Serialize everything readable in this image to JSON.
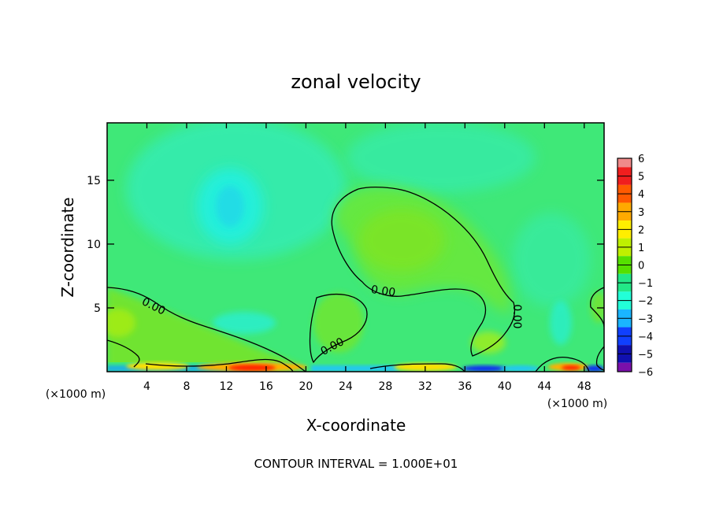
{
  "chart_data": {
    "type": "heatmap",
    "title": "zonal velocity",
    "xlabel": "X-coordinate",
    "ylabel": "Z-coordinate",
    "x_unit_left": "(×1000 m)",
    "x_unit_right": "(×1000 m)",
    "xlim": [
      0,
      50
    ],
    "ylim": [
      0,
      19.5
    ],
    "xticks": [
      4,
      8,
      12,
      16,
      20,
      24,
      28,
      32,
      36,
      40,
      44,
      48
    ],
    "yticks": [
      5,
      10,
      15
    ],
    "footer": "CONTOUR INTERVAL = 1.000E+01",
    "contour_label": "0.00",
    "colorbar": {
      "levels": [
        6,
        5,
        4,
        3,
        2,
        1,
        0,
        -1,
        -2,
        -3,
        -4,
        -5,
        -6
      ],
      "level_labels": [
        "6",
        "5",
        "4",
        "3",
        "2",
        "1",
        "0",
        "−1",
        "−2",
        "−3",
        "−4",
        "−5",
        "−6"
      ],
      "colors": [
        "#f08a8a",
        "#f01e1e",
        "#ff5a00",
        "#ffaa00",
        "#ffee00",
        "#bff000",
        "#55e000",
        "#22e887",
        "#22ffd8",
        "#1ab5ff",
        "#1040ff",
        "#1010b0",
        "#7a10aa"
      ]
    },
    "background_color": "#3fe878"
  }
}
